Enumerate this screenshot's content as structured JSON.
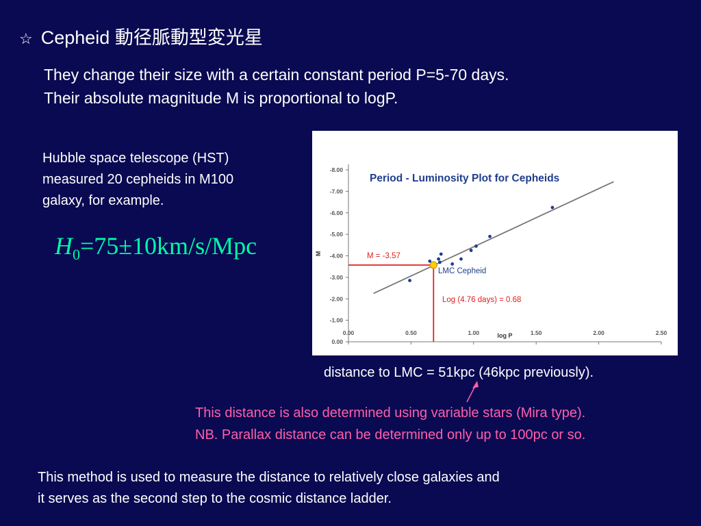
{
  "slide": {
    "title_symbol": "☆",
    "title": "Cepheid 動径脈動型変光星",
    "intro_lines": [
      "They change their size with a certain constant period P=5-70 days.",
      "Their absolute magnitude M is proportional to logP."
    ],
    "hst_lines": [
      "Hubble space telescope (HST)",
      "measured 20 cepheids in M100",
      "galaxy, for example."
    ],
    "formula": {
      "symbol": "H",
      "subscript": "0",
      "expression": "=75±10km/s/Mpc"
    },
    "lmc_distance": "distance to LMC = 51kpc (46kpc previously).",
    "pink_note_lines": [
      "This distance is also determined using variable stars (Mira type).",
      "NB. Parallax distance can be determined only up to 100pc or so."
    ],
    "conclusion_lines": [
      "This method is used to measure the distance to relatively close galaxies and",
      "it serves as the second step to the cosmic distance ladder."
    ],
    "colors": {
      "background": "#0a0a52",
      "formula": "#00ffa8",
      "note": "#ff5fa8",
      "chart_title": "#1f3d8c",
      "chart_points": "#1f3d8c",
      "marker_lines": "#e02020",
      "lmc_marker": "#ffd000"
    }
  },
  "chart_data": {
    "type": "scatter",
    "title": "Period - Luminosity Plot for Cepheids",
    "xlabel": "log P",
    "ylabel": "M",
    "xlim": [
      0.0,
      2.5
    ],
    "ylim": [
      0.0,
      -8.0
    ],
    "y_inverted": true,
    "x_ticks": [
      "0.00",
      "0.50",
      "1.00",
      "1.50",
      "2.00",
      "2.50"
    ],
    "x_tick_values": [
      0.0,
      0.5,
      1.0,
      1.5,
      2.0,
      2.5
    ],
    "y_ticks": [
      "0.00",
      "-1.00",
      "-2.00",
      "-3.00",
      "-4.00",
      "-5.00",
      "-6.00",
      "-7.00",
      "-8.00"
    ],
    "y_tick_values": [
      0,
      -1,
      -2,
      -3,
      -4,
      -5,
      -6,
      -7,
      -8
    ],
    "points": [
      {
        "x": 0.49,
        "y": -2.85
      },
      {
        "x": 0.65,
        "y": -3.75
      },
      {
        "x": 0.72,
        "y": -3.85
      },
      {
        "x": 0.73,
        "y": -3.7
      },
      {
        "x": 0.74,
        "y": -4.08
      },
      {
        "x": 0.83,
        "y": -3.62
      },
      {
        "x": 0.9,
        "y": -3.85
      },
      {
        "x": 0.98,
        "y": -4.25
      },
      {
        "x": 1.02,
        "y": -4.45
      },
      {
        "x": 1.13,
        "y": -4.9
      },
      {
        "x": 1.63,
        "y": -6.25
      }
    ],
    "fit_line": {
      "x": [
        0.2,
        2.12
      ],
      "y": [
        -2.25,
        -7.45
      ]
    },
    "highlight": {
      "x": 0.68,
      "y": -3.57,
      "label": "LMC Cepheid"
    },
    "annotations": {
      "m_label": "M = -3.57",
      "log_label": "Log (4.76 days) = 0.68"
    },
    "grid": false
  }
}
